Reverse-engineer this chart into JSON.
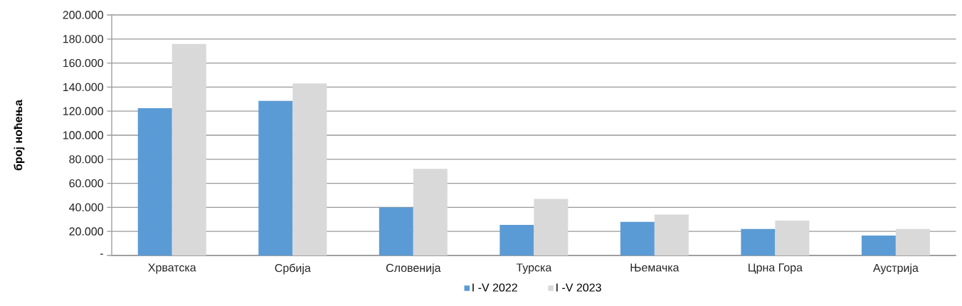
{
  "chart_data": {
    "type": "bar",
    "ylabel": "број ноћења",
    "categories": [
      "Хрватска",
      "Србија",
      "Словенија",
      "Турска",
      "Њемачка",
      "Црна Гора",
      "Аустрија"
    ],
    "series": [
      {
        "name": "I -V 2022",
        "color": "#5b9bd5",
        "values": [
          122500,
          128500,
          40000,
          25500,
          28000,
          22000,
          16500
        ]
      },
      {
        "name": "I -V 2023",
        "color": "#d9d9d9",
        "values": [
          176000,
          143000,
          72000,
          47000,
          34000,
          29000,
          22000
        ]
      }
    ],
    "ylim": [
      0,
      200000
    ],
    "yticks": [
      {
        "value": 0,
        "label": "-"
      },
      {
        "value": 20000,
        "label": "20.000"
      },
      {
        "value": 40000,
        "label": "40.000"
      },
      {
        "value": 60000,
        "label": "60.000"
      },
      {
        "value": 80000,
        "label": "80.000"
      },
      {
        "value": 100000,
        "label": "100.000"
      },
      {
        "value": 120000,
        "label": "120.000"
      },
      {
        "value": 140000,
        "label": "140.000"
      },
      {
        "value": 160000,
        "label": "160.000"
      },
      {
        "value": 180000,
        "label": "180.000"
      },
      {
        "value": 200000,
        "label": "200.000"
      }
    ],
    "grid": "y",
    "legend": "bottom"
  }
}
